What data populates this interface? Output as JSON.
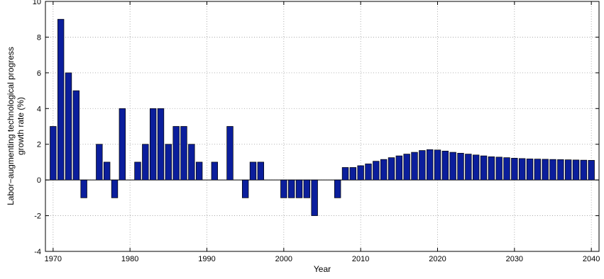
{
  "chart_data": {
    "type": "bar",
    "title": "",
    "xlabel": "Year",
    "ylabel_lines": [
      "Labor−augmenting technological progress",
      "growth rate (%)"
    ],
    "xlim": [
      1969,
      2041
    ],
    "ylim": [
      -4,
      10
    ],
    "xticks": [
      1970,
      1980,
      1990,
      2000,
      2010,
      2020,
      2030,
      2040
    ],
    "yticks": [
      -4,
      -2,
      0,
      2,
      4,
      6,
      8,
      10
    ],
    "grid": true,
    "bar_color": "#0b1e9c",
    "edge_color": "#000000",
    "x": [
      1970,
      1971,
      1972,
      1973,
      1974,
      1975,
      1976,
      1977,
      1978,
      1979,
      1980,
      1981,
      1982,
      1983,
      1984,
      1985,
      1986,
      1987,
      1988,
      1989,
      1990,
      1991,
      1992,
      1993,
      1994,
      1995,
      1996,
      1997,
      1998,
      1999,
      2000,
      2001,
      2002,
      2003,
      2004,
      2005,
      2006,
      2007,
      2008,
      2009,
      2010,
      2011,
      2012,
      2013,
      2014,
      2015,
      2016,
      2017,
      2018,
      2019,
      2020,
      2021,
      2022,
      2023,
      2024,
      2025,
      2026,
      2027,
      2028,
      2029,
      2030,
      2031,
      2032,
      2033,
      2034,
      2035,
      2036,
      2037,
      2038,
      2039,
      2040
    ],
    "values": [
      3,
      9,
      6,
      5,
      -1,
      0,
      2,
      1,
      -1,
      4,
      0,
      1,
      2,
      4,
      4,
      2,
      3,
      3,
      2,
      1,
      0,
      1,
      0,
      3,
      0,
      -1,
      1,
      1,
      0,
      0,
      -1,
      -1,
      -1,
      -1,
      -2,
      0,
      0,
      -1,
      0.7,
      0.7,
      0.8,
      0.9,
      1.05,
      1.15,
      1.25,
      1.35,
      1.45,
      1.55,
      1.65,
      1.7,
      1.68,
      1.62,
      1.55,
      1.5,
      1.45,
      1.4,
      1.35,
      1.3,
      1.28,
      1.25,
      1.22,
      1.2,
      1.18,
      1.17,
      1.16,
      1.15,
      1.14,
      1.13,
      1.12,
      1.11,
      1.1
    ]
  }
}
